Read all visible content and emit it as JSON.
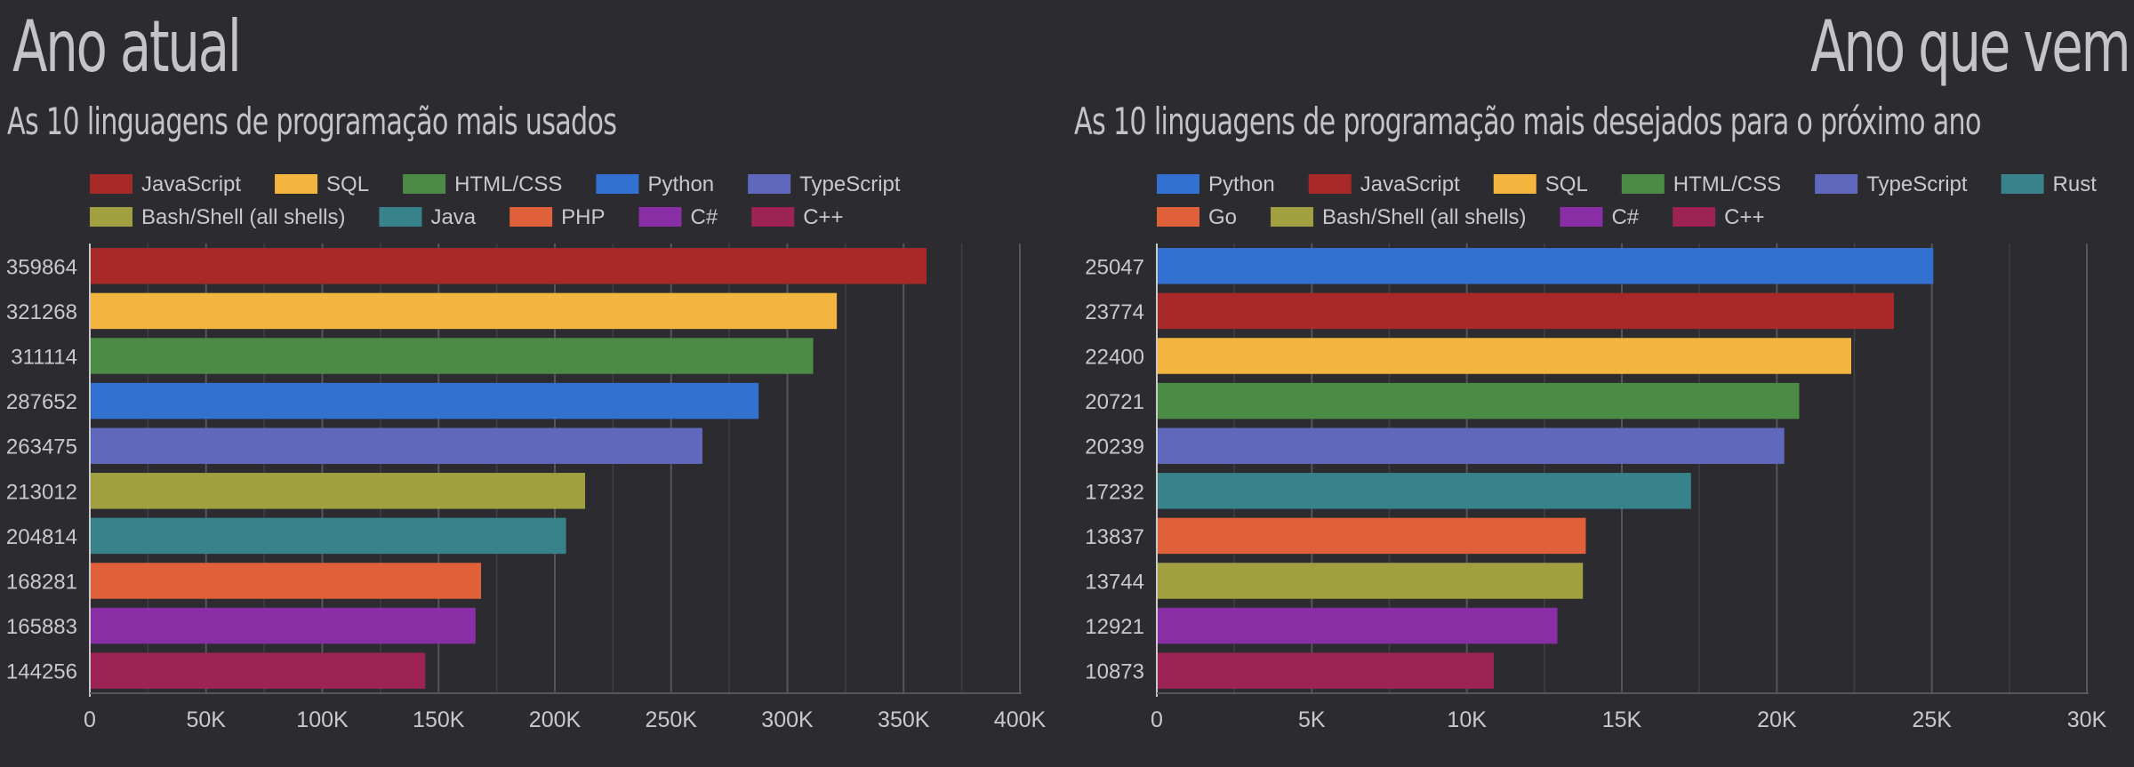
{
  "headlines": {
    "left": "Ano atual",
    "right": "Ano que vem"
  },
  "chart_data": [
    {
      "type": "bar",
      "orientation": "horizontal",
      "title": "As 10 linguagens de programação mais usados",
      "legend": [
        {
          "name": "JavaScript",
          "color": "#a82a28"
        },
        {
          "name": "SQL",
          "color": "#f3b53e"
        },
        {
          "name": "HTML/CSS",
          "color": "#4c8b46"
        },
        {
          "name": "Python",
          "color": "#3371d0"
        },
        {
          "name": "TypeScript",
          "color": "#5f68bd"
        },
        {
          "name": "Bash/Shell (all shells)",
          "color": "#a0a041"
        },
        {
          "name": "Java",
          "color": "#37828b"
        },
        {
          "name": "PHP",
          "color": "#e0603a"
        },
        {
          "name": "C#",
          "color": "#8a2ea5"
        },
        {
          "name": "C++",
          "color": "#9c2353"
        }
      ],
      "categories": [
        "JavaScript",
        "SQL",
        "HTML/CSS",
        "Python",
        "TypeScript",
        "Bash/Shell (all shells)",
        "Java",
        "PHP",
        "C#",
        "C++"
      ],
      "values": [
        359864,
        321268,
        311114,
        287652,
        263475,
        213012,
        204814,
        168281,
        165883,
        144256
      ],
      "colors": [
        "#a82a28",
        "#f3b53e",
        "#4c8b46",
        "#3371d0",
        "#5f68bd",
        "#a0a041",
        "#37828b",
        "#e0603a",
        "#8a2ea5",
        "#9c2353"
      ],
      "xlim": [
        0,
        400000
      ],
      "xticks": [
        0,
        50000,
        100000,
        150000,
        200000,
        250000,
        300000,
        350000,
        400000
      ],
      "xtick_labels": [
        "0",
        "50K",
        "100K",
        "150K",
        "200K",
        "250K",
        "300K",
        "350K",
        "400K"
      ],
      "grid": true,
      "legend_position": "top"
    },
    {
      "type": "bar",
      "orientation": "horizontal",
      "title": "As 10 linguagens de programação mais desejados para o próximo ano",
      "legend": [
        {
          "name": "Python",
          "color": "#3371d0"
        },
        {
          "name": "JavaScript",
          "color": "#a82a28"
        },
        {
          "name": "SQL",
          "color": "#f3b53e"
        },
        {
          "name": "HTML/CSS",
          "color": "#4c8b46"
        },
        {
          "name": "TypeScript",
          "color": "#5f68bd"
        },
        {
          "name": "Rust",
          "color": "#37828b"
        },
        {
          "name": "Go",
          "color": "#e0603a"
        },
        {
          "name": "Bash/Shell (all shells)",
          "color": "#a0a041"
        },
        {
          "name": "C#",
          "color": "#8a2ea5"
        },
        {
          "name": "C++",
          "color": "#9c2353"
        }
      ],
      "categories": [
        "Python",
        "JavaScript",
        "SQL",
        "HTML/CSS",
        "TypeScript",
        "Rust",
        "Go",
        "Bash/Shell (all shells)",
        "C#",
        "C++"
      ],
      "values": [
        25047,
        23774,
        22400,
        20721,
        20239,
        17232,
        13837,
        13744,
        12921,
        10873
      ],
      "colors": [
        "#3371d0",
        "#a82a28",
        "#f3b53e",
        "#4c8b46",
        "#5f68bd",
        "#37828b",
        "#e0603a",
        "#a0a041",
        "#8a2ea5",
        "#9c2353"
      ],
      "xlim": [
        0,
        30000
      ],
      "xticks": [
        0,
        5000,
        10000,
        15000,
        20000,
        25000,
        30000
      ],
      "xtick_labels": [
        "0",
        "5K",
        "10K",
        "15K",
        "20K",
        "25K",
        "30K"
      ],
      "grid": true,
      "legend_position": "top"
    }
  ]
}
